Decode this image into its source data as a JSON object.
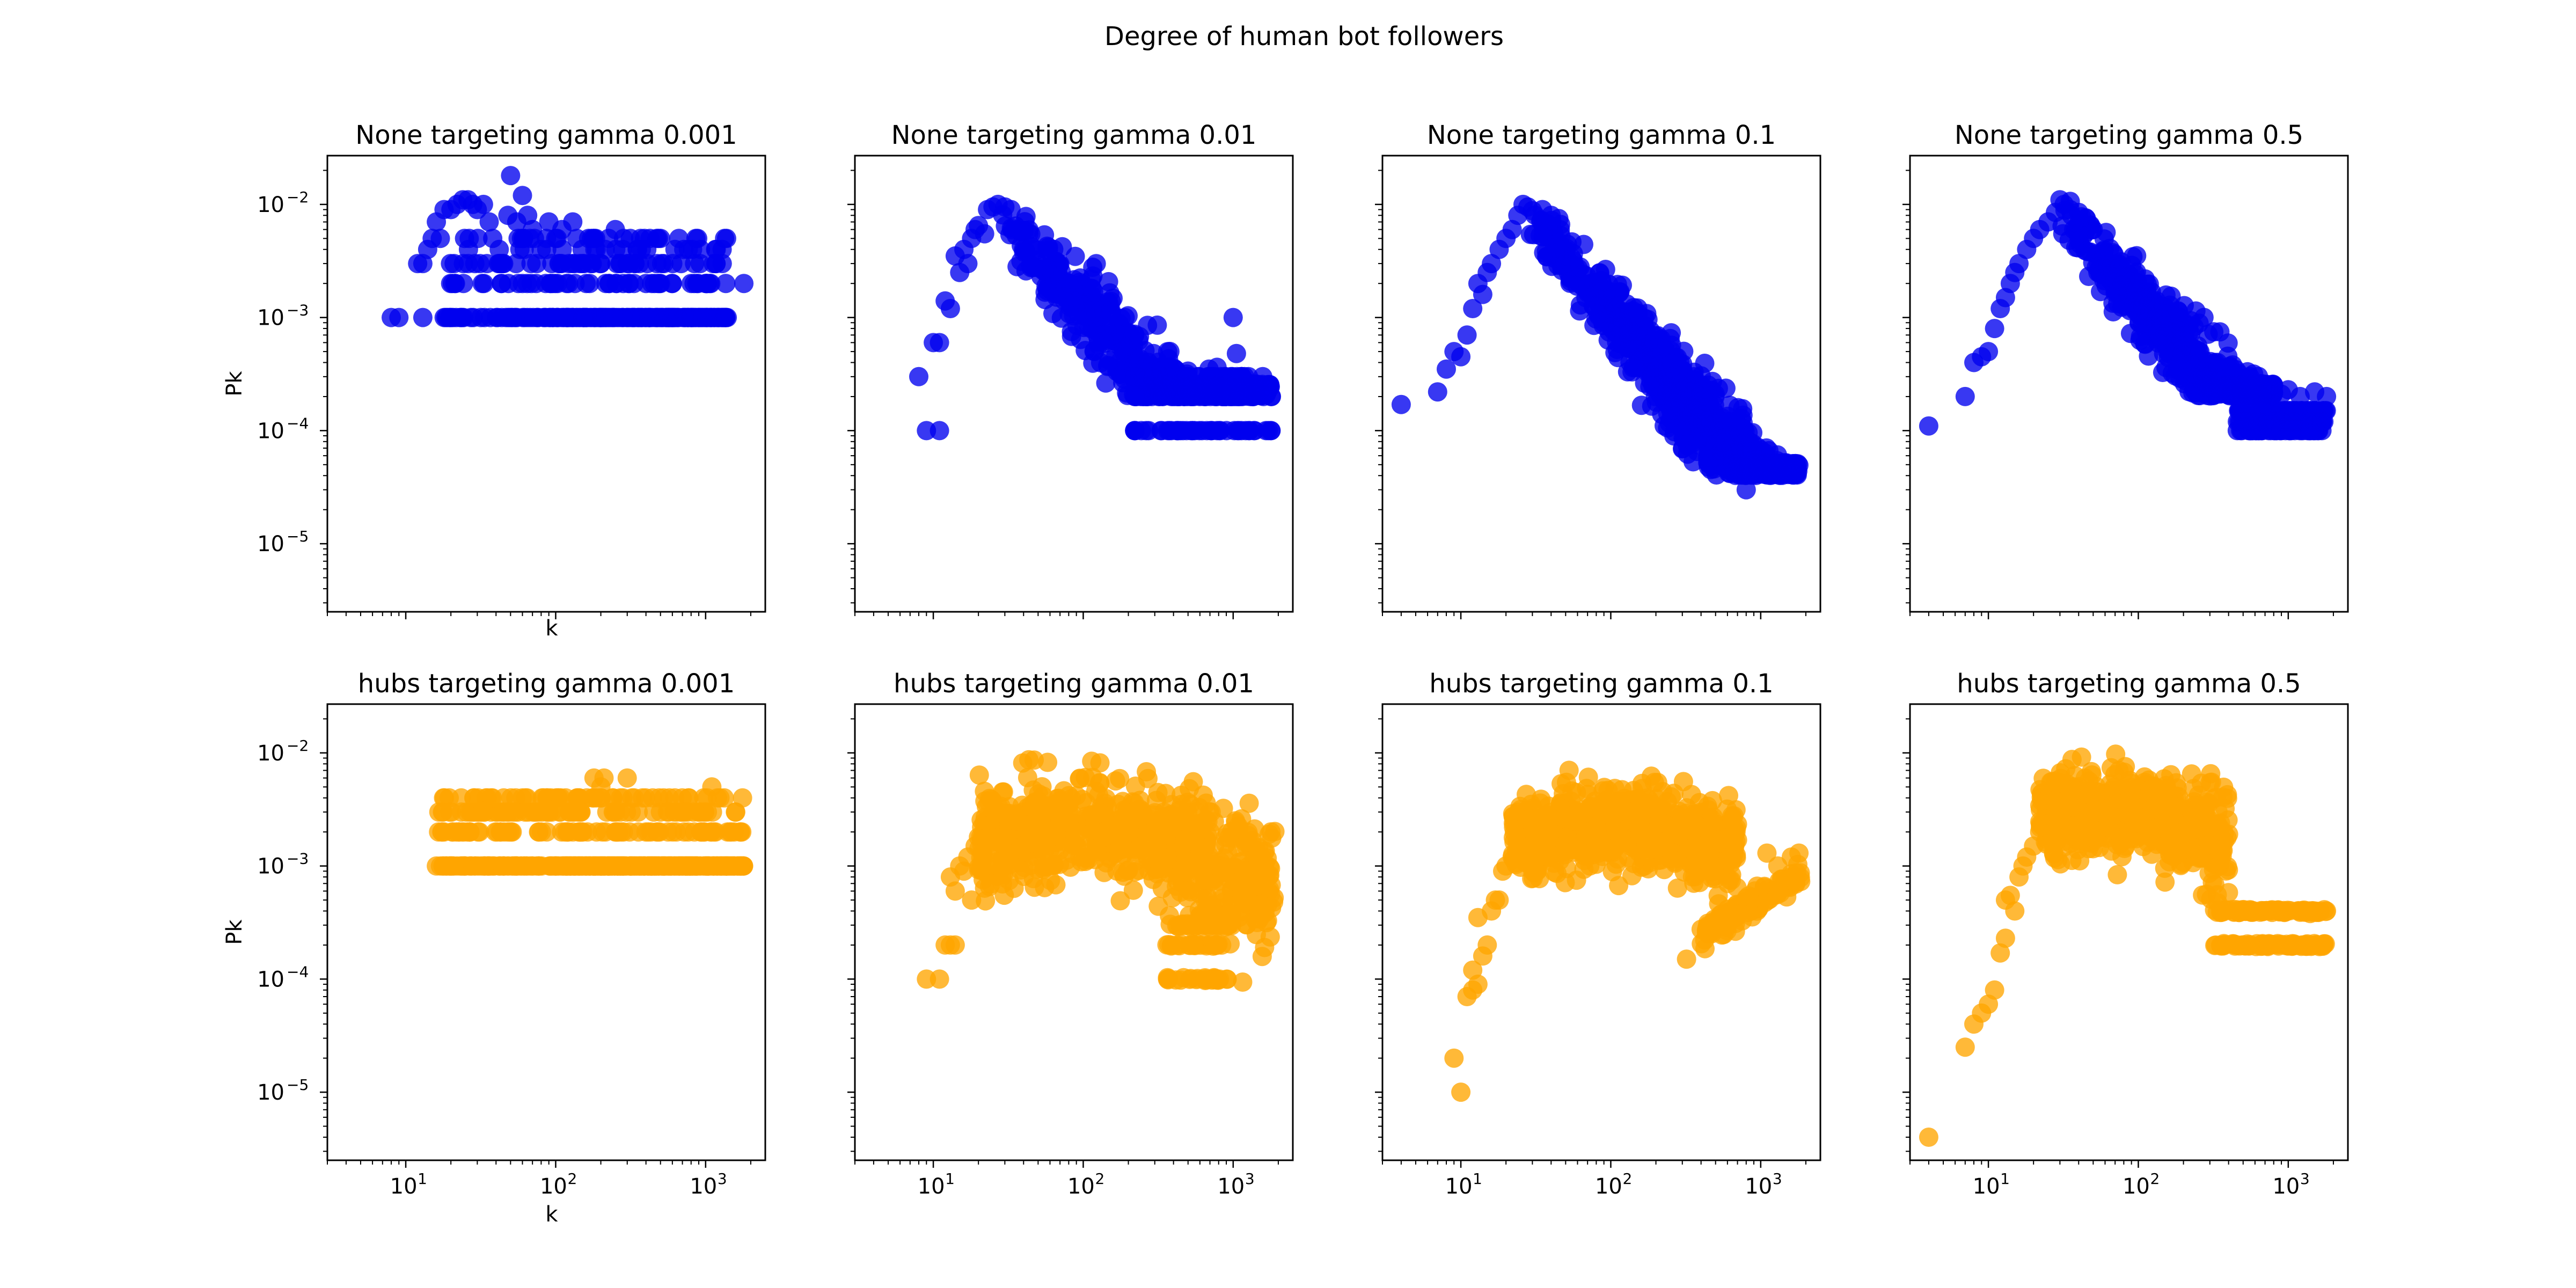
{
  "figure": {
    "title": "Degree of human bot followers"
  },
  "axes": {
    "xticks": [
      {
        "base": "10",
        "exp": "1",
        "value": 10
      },
      {
        "base": "10",
        "exp": "2",
        "value": 100
      },
      {
        "base": "10",
        "exp": "3",
        "value": 1000
      }
    ],
    "yticks": [
      {
        "base": "10",
        "exp": "−2",
        "value": 0.01
      },
      {
        "base": "10",
        "exp": "−3",
        "value": 0.001
      },
      {
        "base": "10",
        "exp": "−4",
        "value": 0.0001
      },
      {
        "base": "10",
        "exp": "−5",
        "value": 1e-05
      }
    ],
    "xlabel": "k",
    "ylabel": "Pk"
  },
  "chart_data": [
    {
      "type": "scatter",
      "title": "None targeting gamma 0.001",
      "color": "#0000ee",
      "xscale": "log",
      "yscale": "log",
      "xlim": [
        3,
        2500
      ],
      "ylim": [
        2.5e-06,
        0.027
      ],
      "xlabel": "k",
      "ylabel": "Pk",
      "gen": {
        "kind": "flat_levels",
        "levels": [
          0.001,
          0.002,
          0.003,
          0.004,
          0.005
        ],
        "xmin": 18,
        "xmax": 1400,
        "n": 260,
        "seed": 11
      },
      "points": [
        [
          8,
          0.001
        ],
        [
          9,
          0.001
        ],
        [
          13,
          0.001
        ],
        [
          12,
          0.003
        ],
        [
          13,
          0.003
        ],
        [
          14,
          0.004
        ],
        [
          15,
          0.005
        ],
        [
          17,
          0.005
        ],
        [
          16,
          0.007
        ],
        [
          18,
          0.009
        ],
        [
          20,
          0.009
        ],
        [
          22,
          0.01
        ],
        [
          24,
          0.011
        ],
        [
          26,
          0.011
        ],
        [
          28,
          0.01
        ],
        [
          30,
          0.009
        ],
        [
          33,
          0.01
        ],
        [
          36,
          0.007
        ],
        [
          38,
          0.005
        ],
        [
          42,
          0.004
        ],
        [
          45,
          0.003
        ],
        [
          48,
          0.008
        ],
        [
          50,
          0.018
        ],
        [
          55,
          0.007
        ],
        [
          60,
          0.012
        ],
        [
          65,
          0.008
        ],
        [
          70,
          0.006
        ],
        [
          80,
          0.004
        ],
        [
          90,
          0.007
        ],
        [
          100,
          0.005
        ],
        [
          110,
          0.006
        ],
        [
          130,
          0.007
        ],
        [
          150,
          0.004
        ],
        [
          180,
          0.005
        ],
        [
          200,
          0.003
        ],
        [
          250,
          0.006
        ],
        [
          280,
          0.004
        ],
        [
          300,
          0.003
        ],
        [
          400,
          0.002
        ],
        [
          500,
          0.002
        ],
        [
          600,
          0.002
        ],
        [
          800,
          0.002
        ],
        [
          1000,
          0.002
        ],
        [
          1300,
          0.001
        ],
        [
          1800,
          0.002
        ]
      ]
    },
    {
      "type": "scatter",
      "title": "None targeting gamma 0.01",
      "color": "#0000ee",
      "xscale": "log",
      "yscale": "log",
      "xlim": [
        3,
        2500
      ],
      "ylim": [
        2.5e-06,
        0.027
      ],
      "gen": {
        "kind": "power_cloud",
        "x0": 28,
        "y0": 0.0075,
        "slope": -1.4,
        "xmax": 1800,
        "spread": 0.23,
        "n": 700,
        "ymin": 0.0002,
        "levels": [
          0.0001,
          0.0002,
          0.0003
        ],
        "lxmin": 220,
        "lxmax": 1800,
        "ln": 150,
        "seed": 23
      },
      "points": [
        [
          8,
          0.0003
        ],
        [
          9,
          0.0001
        ],
        [
          11,
          0.0001
        ],
        [
          10,
          0.0006
        ],
        [
          11,
          0.0006
        ],
        [
          12,
          0.0014
        ],
        [
          13,
          0.0012
        ],
        [
          14,
          0.0035
        ],
        [
          15,
          0.0025
        ],
        [
          16,
          0.004
        ],
        [
          17,
          0.003
        ],
        [
          18,
          0.005
        ],
        [
          19,
          0.006
        ],
        [
          20,
          0.0065
        ],
        [
          22,
          0.0055
        ],
        [
          23,
          0.009
        ],
        [
          25,
          0.0095
        ],
        [
          27,
          0.01
        ],
        [
          30,
          0.0095
        ],
        [
          33,
          0.009
        ],
        [
          1000,
          0.001
        ]
      ]
    },
    {
      "type": "scatter",
      "title": "None targeting gamma 0.1",
      "color": "#0000ee",
      "xscale": "log",
      "yscale": "log",
      "xlim": [
        3,
        2500
      ],
      "ylim": [
        2.5e-06,
        0.027
      ],
      "gen": {
        "kind": "power_cloud",
        "x0": 28,
        "y0": 0.0085,
        "slope": -1.6,
        "xmax": 1800,
        "spread": 0.2,
        "n": 900,
        "ymin": 4e-05,
        "levels": [],
        "seed": 37
      },
      "points": [
        [
          4,
          0.00017
        ],
        [
          7,
          0.00022
        ],
        [
          8,
          0.00035
        ],
        [
          9,
          0.0005
        ],
        [
          10,
          0.00045
        ],
        [
          11,
          0.0007
        ],
        [
          12,
          0.0012
        ],
        [
          13,
          0.002
        ],
        [
          14,
          0.0016
        ],
        [
          15,
          0.0025
        ],
        [
          16,
          0.003
        ],
        [
          18,
          0.004
        ],
        [
          20,
          0.005
        ],
        [
          22,
          0.006
        ],
        [
          24,
          0.008
        ],
        [
          26,
          0.01
        ],
        [
          28,
          0.0095
        ],
        [
          30,
          0.0088
        ],
        [
          35,
          0.009
        ],
        [
          40,
          0.008
        ],
        [
          45,
          0.0075
        ],
        [
          55,
          0.0025
        ],
        [
          800,
          3e-05
        ],
        [
          600,
          6e-05
        ]
      ]
    },
    {
      "type": "scatter",
      "title": "None targeting gamma 0.5",
      "color": "#0000ee",
      "xscale": "log",
      "yscale": "log",
      "xlim": [
        3,
        2500
      ],
      "ylim": [
        2.5e-06,
        0.027
      ],
      "gen": {
        "kind": "power_cloud",
        "x0": 30,
        "y0": 0.0085,
        "slope": -1.5,
        "xmax": 800,
        "spread": 0.2,
        "n": 650,
        "ymin": 0.0002,
        "levels": [
          0.0001,
          0.00012,
          0.00015
        ],
        "lxmin": 450,
        "lxmax": 1800,
        "ln": 160,
        "seed": 41
      },
      "points": [
        [
          4,
          0.00011
        ],
        [
          7,
          0.0002
        ],
        [
          8,
          0.0004
        ],
        [
          9,
          0.00045
        ],
        [
          10,
          0.0005
        ],
        [
          11,
          0.0008
        ],
        [
          12,
          0.0012
        ],
        [
          13,
          0.0015
        ],
        [
          14,
          0.002
        ],
        [
          15,
          0.0025
        ],
        [
          16,
          0.003
        ],
        [
          18,
          0.004
        ],
        [
          20,
          0.005
        ],
        [
          22,
          0.006
        ],
        [
          25,
          0.007
        ],
        [
          28,
          0.0085
        ],
        [
          30,
          0.011
        ],
        [
          32,
          0.01
        ],
        [
          35,
          0.009
        ],
        [
          40,
          0.0085
        ],
        [
          45,
          0.0075
        ],
        [
          50,
          0.006
        ],
        [
          1200,
          0.0002
        ],
        [
          1500,
          0.00022
        ],
        [
          1800,
          0.0002
        ],
        [
          1000,
          0.00023
        ],
        [
          900,
          0.00021
        ],
        [
          700,
          0.0002
        ]
      ]
    },
    {
      "type": "scatter",
      "title": "hubs targeting gamma 0.001",
      "color": "#ffa500",
      "xscale": "log",
      "yscale": "log",
      "xlim": [
        3,
        2500
      ],
      "ylim": [
        2.5e-06,
        0.027
      ],
      "xlabel": "k",
      "ylabel": "Pk",
      "gen": {
        "kind": "flat_levels",
        "levels": [
          0.001,
          0.002,
          0.003,
          0.004
        ],
        "xmin": 16,
        "xmax": 1800,
        "n": 420,
        "seed": 53
      },
      "points": [
        [
          16,
          0.001
        ],
        [
          18,
          0.002
        ],
        [
          20,
          0.001
        ],
        [
          22,
          0.001
        ],
        [
          25,
          0.001
        ],
        [
          28,
          0.003
        ],
        [
          32,
          0.003
        ],
        [
          35,
          0.004
        ],
        [
          40,
          0.003
        ],
        [
          45,
          0.004
        ],
        [
          180,
          0.006
        ],
        [
          200,
          0.005
        ],
        [
          210,
          0.006
        ],
        [
          300,
          0.006
        ],
        [
          1100,
          0.005
        ],
        [
          1200,
          0.004
        ],
        [
          1400,
          0.002
        ],
        [
          1700,
          0.002
        ]
      ]
    },
    {
      "type": "scatter",
      "title": "hubs targeting gamma 0.01",
      "color": "#ffa500",
      "xscale": "log",
      "yscale": "log",
      "xlim": [
        3,
        2500
      ],
      "ylim": [
        2.5e-06,
        0.027
      ],
      "gen": {
        "kind": "hump_cloud",
        "xmin": 20,
        "xmax": 1900,
        "peak": 0.0022,
        "peakx": 120,
        "width": 1.6,
        "spread": 0.22,
        "n": 800,
        "levels": [
          0.0001,
          0.0002,
          0.0003
        ],
        "lxmin": 350,
        "lxmax": 1000,
        "ln": 90,
        "seed": 67
      },
      "points": [
        [
          9,
          0.0001
        ],
        [
          11,
          0.0001
        ],
        [
          12,
          0.0002
        ],
        [
          13,
          0.0002
        ],
        [
          14,
          0.0002
        ],
        [
          13,
          0.0008
        ],
        [
          14,
          0.0006
        ],
        [
          15,
          0.001
        ],
        [
          16,
          0.0009
        ],
        [
          17,
          0.0012
        ],
        [
          18,
          0.0005
        ],
        [
          19,
          0.0015
        ],
        [
          20,
          0.0018
        ],
        [
          21,
          0.0022
        ],
        [
          23,
          0.002
        ],
        [
          25,
          0.0025
        ],
        [
          28,
          0.0022
        ]
      ]
    },
    {
      "type": "scatter",
      "title": "hubs targeting gamma 0.1",
      "color": "#ffa500",
      "xscale": "log",
      "yscale": "log",
      "xlim": [
        3,
        2500
      ],
      "ylim": [
        2.5e-06,
        0.027
      ],
      "gen": {
        "kind": "hump_cloud",
        "xmin": 22,
        "xmax": 700,
        "peak": 0.0022,
        "peakx": 150,
        "width": 1.7,
        "spread": 0.18,
        "n": 700,
        "levels": [],
        "seed": 79,
        "tail": {
          "xmin": 400,
          "xmax": 1900,
          "y0": 0.00025,
          "y1": 0.0008,
          "n": 140
        }
      },
      "points": [
        [
          9,
          2e-05
        ],
        [
          10,
          1e-05
        ],
        [
          11,
          7e-05
        ],
        [
          12,
          8e-05
        ],
        [
          12,
          0.00012
        ],
        [
          13,
          9e-05
        ],
        [
          14,
          0.00016
        ],
        [
          13,
          0.00035
        ],
        [
          15,
          0.0002
        ],
        [
          16,
          0.0004
        ],
        [
          17,
          0.0005
        ],
        [
          18,
          0.0005
        ],
        [
          19,
          0.0009
        ],
        [
          20,
          0.001
        ],
        [
          22,
          0.0012
        ],
        [
          24,
          0.0014
        ],
        [
          320,
          0.00015
        ],
        [
          1100,
          0.0013
        ],
        [
          1300,
          0.001
        ],
        [
          1600,
          0.0012
        ],
        [
          1800,
          0.0013
        ],
        [
          600,
          0.0015
        ],
        [
          700,
          0.0017
        ]
      ]
    },
    {
      "type": "scatter",
      "title": "hubs targeting gamma 0.5",
      "color": "#ffa500",
      "xscale": "log",
      "yscale": "log",
      "xlim": [
        3,
        2500
      ],
      "ylim": [
        2.5e-06,
        0.027
      ],
      "gen": {
        "kind": "hump_cloud",
        "xmin": 22,
        "xmax": 400,
        "peak": 0.0032,
        "peakx": 70,
        "width": 1.3,
        "spread": 0.18,
        "n": 650,
        "levels": [
          0.0002,
          0.0004
        ],
        "lxmin": 320,
        "lxmax": 1800,
        "ln": 170,
        "seed": 91
      },
      "points": [
        [
          4,
          4e-06
        ],
        [
          7,
          2.5e-05
        ],
        [
          8,
          4e-05
        ],
        [
          9,
          5e-05
        ],
        [
          10,
          6e-05
        ],
        [
          11,
          8e-05
        ],
        [
          12,
          0.00017
        ],
        [
          13,
          0.00023
        ],
        [
          13,
          0.0005
        ],
        [
          14,
          0.00055
        ],
        [
          15,
          0.0004
        ],
        [
          16,
          0.0008
        ],
        [
          17,
          0.001
        ],
        [
          18,
          0.0012
        ],
        [
          20,
          0.0015
        ],
        [
          22,
          0.002
        ],
        [
          25,
          0.0025
        ],
        [
          80,
          0.0048
        ],
        [
          1200,
          0.0004
        ],
        [
          1800,
          0.0004
        ],
        [
          1400,
          0.00038
        ]
      ]
    }
  ]
}
